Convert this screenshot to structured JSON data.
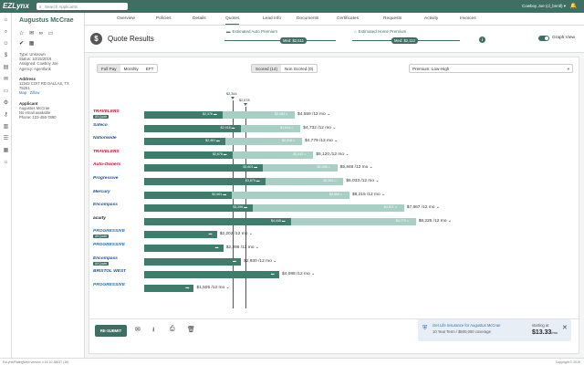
{
  "topbar": {
    "logo": "EZLynx",
    "search_placeholder": "Search Applicants",
    "user": "Cowboy Joe (cl_bnntl) ▾"
  },
  "applicant": {
    "name": "Augustus McCrae",
    "type": "Type: Unknown",
    "status": "Status: 10/15/2019",
    "assigned": "Assigned: Cowboy Joe",
    "agency": "Agency: Agentlunk",
    "address_label": "Address",
    "address": "12342 COIT RD DALLAS, TX 75251",
    "map_link": "Map",
    "zillow_link": "Zillow",
    "applicant_label": "Applicant",
    "applicant_name": "Augustus McCrae",
    "email": "No email available",
    "phone": "Phone: 123-456-7890"
  },
  "tabs": [
    "Overview",
    "Policies",
    "Details",
    "Quotes",
    "Lead Info",
    "Documents",
    "Certificates",
    "Requests",
    "Activity",
    "Invoices"
  ],
  "header": {
    "title": "Quote Results",
    "auto_label": "Estimated Auto Premium",
    "auto_med": "Med: $2,511",
    "home_label": "Estimated Home Premium",
    "home_med": "Med: $2,112",
    "graph_view": "Graph View"
  },
  "filters": {
    "pay_options": [
      "Full Pay",
      "Monthly",
      "EFT"
    ],
    "scored": [
      "Scored (14)",
      "Non Scored (0)"
    ],
    "sort": "Premium: Low-High"
  },
  "markers": {
    "top": "$2,344",
    "second": "$2,578"
  },
  "quotes": [
    {
      "carrier": "TRAVELERS",
      "color": "#c8102e",
      "badge": "All Quote",
      "auto": 2376,
      "auto_label": "$2,376",
      "home": 2183,
      "home_label": "$2,183",
      "total": "$4,559",
      "per": "/12 mo"
    },
    {
      "carrier": "Safeco",
      "color": "#1d4f91",
      "badge": "",
      "auto": 2918,
      "auto_label": "$2,918",
      "home": 1814,
      "home_label": "$1,814",
      "total": "$4,732",
      "per": "/12 mo"
    },
    {
      "carrier": "Nationwide",
      "color": "#1d4f91",
      "badge": "",
      "auto": 2461,
      "auto_label": "$2,461",
      "home": 2318,
      "home_label": "$2,318",
      "total": "$4,779",
      "per": "/12 mo"
    },
    {
      "carrier": "TRAVELERS",
      "color": "#c8102e",
      "badge": "",
      "auto": 2678,
      "auto_label": "$2,678",
      "home": 2442,
      "home_label": "$2,442",
      "total": "$5,120",
      "per": "/12 mo"
    },
    {
      "carrier": "Auto-Owners",
      "color": "#c8102e",
      "badge": "",
      "auto": 3601,
      "auto_label": "$3,601",
      "home": 2246,
      "home_label": "$2,246",
      "total": "$5,848",
      "per": "/12 mo"
    },
    {
      "carrier": "Progressive",
      "color": "#1d4f91",
      "badge": "",
      "auto": 3670,
      "auto_label": "$3,670",
      "home": 2363,
      "home_label": "$2,363",
      "total": "$6,033",
      "per": "/12 mo"
    },
    {
      "carrier": "Mercury",
      "color": "#1d4f91",
      "badge": "",
      "auto": 2661,
      "auto_label": "$2,661",
      "home": 3554,
      "home_label": "$3,554",
      "total": "$6,215",
      "per": "/12 mo"
    },
    {
      "carrier": "Encompass",
      "color": "#1d4f91",
      "badge": "",
      "auto": 3296,
      "auto_label": "$3,296",
      "home": 4571,
      "home_label": "$4,571",
      "total": "$7,867",
      "per": "/12 mo"
    },
    {
      "carrier": "acuity",
      "color": "#222222",
      "badge": "",
      "auto": 4446,
      "auto_label": "$4,446",
      "home": 3779,
      "home_label": "$3,779",
      "total": "$8,225",
      "per": "/12 mo"
    },
    {
      "carrier": "PROGRESSIVE",
      "color": "#1d6fb8",
      "badge": "All Quote",
      "auto": 2202,
      "auto_label": "",
      "home": 0,
      "home_label": "",
      "total": "$2,202",
      "per": "/12 mo"
    },
    {
      "carrier": "PROGRESSIVE",
      "color": "#1d6fb8",
      "badge": "",
      "auto": 2396,
      "auto_label": "",
      "home": 0,
      "home_label": "",
      "total": "$2,396",
      "per": "/12 mo"
    },
    {
      "carrier": "Encompass",
      "color": "#1d4f91",
      "badge": "All Quote",
      "auto": 2930,
      "auto_label": "",
      "home": 0,
      "home_label": "",
      "total": "$2,930",
      "per": "/12 mo"
    },
    {
      "carrier": "BRISTOL WEST",
      "color": "#1d4f91",
      "badge": "",
      "auto": 4088,
      "auto_label": "",
      "home": 0,
      "home_label": "",
      "total": "$4,088",
      "per": "/12 mo"
    },
    {
      "carrier": "PROGRESSIVE",
      "color": "#1d6fb8",
      "badge": "",
      "auto": 1505,
      "auto_label": "",
      "home": 0,
      "home_label": "",
      "total": "$1,505",
      "per": "/12 mo"
    }
  ],
  "bottom": {
    "resubmit": "RE-SUBMIT",
    "life_title": "Get Life Insurance for Augustus McCrae",
    "life_sub": "10 Year Term / $500,000 coverage",
    "starting": "starting at",
    "price": "$13.33",
    "price_per": "/mo"
  },
  "footer": {
    "left": "EzLynx/RatingWeb version 4.16.10.38637 (16)",
    "right": "Copyright © 2019"
  }
}
